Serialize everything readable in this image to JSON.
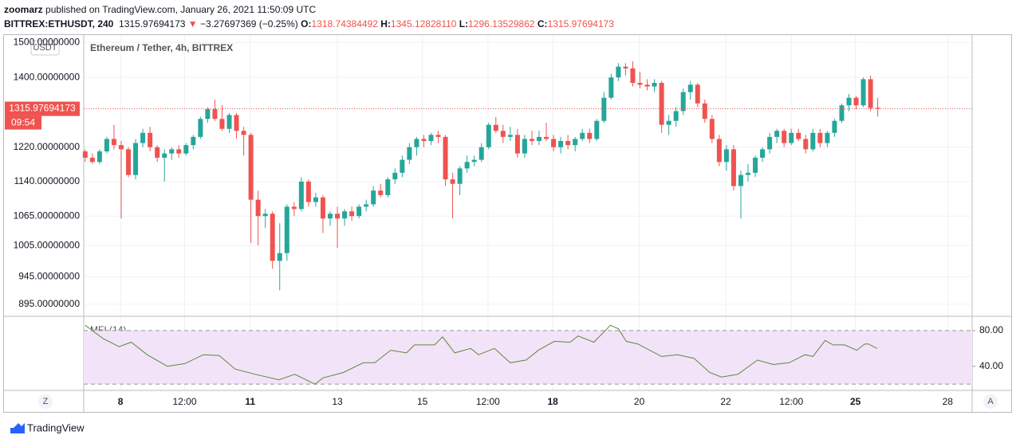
{
  "header": {
    "publisher": "zoomarz",
    "published": "published on TradingView.com, January 26, 2021 11:50:09 UTC",
    "symbol": "BITTREX:ETHUSDT, 240",
    "last": "1315.97694173",
    "direction": "▼",
    "change": "−3.27697369 (−0.25%)",
    "ohlc": [
      {
        "label": "O:",
        "value": "1318.74384492"
      },
      {
        "label": "H:",
        "value": "1345.12828110"
      },
      {
        "label": "L:",
        "value": "1296.13529862"
      },
      {
        "label": "C:",
        "value": "1315.97694173"
      }
    ]
  },
  "footer": {
    "logo": "TradingView",
    "left_button": "Z",
    "right_button": "A"
  },
  "chart_data": [
    {
      "type": "candlestick",
      "title": "Ethereum / Tether, 4h, BITTREX",
      "currency": "USDT",
      "countdown": "09:54",
      "up_color": "#26a69a",
      "down_color": "#ef5350",
      "log_scale": true,
      "grid": true,
      "ylim": [
        874,
        1522
      ],
      "yticks": [
        {
          "value": 1500,
          "label": "1500.00000000"
        },
        {
          "value": 1400,
          "label": "1400.00000000"
        },
        {
          "value": 1220,
          "label": "1220.00000000"
        },
        {
          "value": 1140,
          "label": "1140.00000000"
        },
        {
          "value": 1065,
          "label": "1065.00000000"
        },
        {
          "value": 1005,
          "label": "1005.00000000"
        },
        {
          "value": 945,
          "label": "945.00000000"
        },
        {
          "value": 895,
          "label": "895.00000000"
        }
      ],
      "xlim": [
        -0.2,
        123.1
      ],
      "xticks": [
        {
          "value": 4.9,
          "label": "8"
        },
        {
          "value": 13.8,
          "label": "12:00"
        },
        {
          "value": 22.9,
          "label": "11"
        },
        {
          "value": 35,
          "label": "13"
        },
        {
          "value": 46.8,
          "label": "15"
        },
        {
          "value": 55.9,
          "label": "12:00"
        },
        {
          "value": 64.9,
          "label": "18"
        },
        {
          "value": 76.9,
          "label": "20"
        },
        {
          "value": 88.9,
          "label": "22"
        },
        {
          "value": 98,
          "label": "12:00"
        },
        {
          "value": 106.9,
          "label": "25"
        },
        {
          "value": 119.7,
          "label": "28"
        }
      ],
      "candles": [
        [
          1210,
          1215,
          1185,
          1195
        ],
        [
          1195,
          1205,
          1180,
          1185
        ],
        [
          1185,
          1215,
          1180,
          1210
        ],
        [
          1210,
          1245,
          1205,
          1240
        ],
        [
          1240,
          1275,
          1215,
          1225
        ],
        [
          1225,
          1235,
          1060,
          1215
        ],
        [
          1215,
          1220,
          1150,
          1155
        ],
        [
          1155,
          1240,
          1145,
          1230
        ],
        [
          1230,
          1265,
          1220,
          1255
        ],
        [
          1255,
          1270,
          1210,
          1220
        ],
        [
          1220,
          1225,
          1185,
          1195
        ],
        [
          1195,
          1215,
          1140,
          1205
        ],
        [
          1205,
          1220,
          1190,
          1215
        ],
        [
          1215,
          1225,
          1195,
          1205
        ],
        [
          1205,
          1230,
          1200,
          1225
        ],
        [
          1225,
          1250,
          1215,
          1245
        ],
        [
          1245,
          1295,
          1240,
          1290
        ],
        [
          1290,
          1320,
          1280,
          1315
        ],
        [
          1315,
          1340,
          1285,
          1290
        ],
        [
          1290,
          1325,
          1260,
          1265
        ],
        [
          1265,
          1305,
          1255,
          1300
        ],
        [
          1300,
          1305,
          1240,
          1260
        ],
        [
          1260,
          1270,
          1200,
          1250
        ],
        [
          1250,
          1255,
          1010,
          1100
        ],
        [
          1100,
          1120,
          1005,
          1065
        ],
        [
          1065,
          1080,
          1040,
          1070
        ],
        [
          1070,
          1075,
          960,
          975
        ],
        [
          975,
          1050,
          920,
          990
        ],
        [
          990,
          1090,
          975,
          1085
        ],
        [
          1085,
          1095,
          1065,
          1080
        ],
        [
          1080,
          1150,
          1075,
          1140
        ],
        [
          1140,
          1145,
          1085,
          1095
        ],
        [
          1095,
          1115,
          1085,
          1105
        ],
        [
          1105,
          1110,
          1030,
          1060
        ],
        [
          1060,
          1075,
          1045,
          1070
        ],
        [
          1070,
          1085,
          1000,
          1060
        ],
        [
          1060,
          1080,
          1045,
          1075
        ],
        [
          1075,
          1085,
          1055,
          1065
        ],
        [
          1065,
          1090,
          1060,
          1085
        ],
        [
          1085,
          1100,
          1075,
          1090
        ],
        [
          1090,
          1130,
          1085,
          1120
        ],
        [
          1120,
          1135,
          1105,
          1110
        ],
        [
          1110,
          1150,
          1105,
          1145
        ],
        [
          1145,
          1170,
          1135,
          1160
        ],
        [
          1160,
          1200,
          1150,
          1190
        ],
        [
          1190,
          1230,
          1180,
          1220
        ],
        [
          1220,
          1245,
          1200,
          1240
        ],
        [
          1240,
          1250,
          1220,
          1235
        ],
        [
          1235,
          1255,
          1225,
          1250
        ],
        [
          1250,
          1260,
          1230,
          1245
        ],
        [
          1245,
          1250,
          1130,
          1145
        ],
        [
          1145,
          1160,
          1060,
          1135
        ],
        [
          1135,
          1175,
          1110,
          1170
        ],
        [
          1170,
          1200,
          1160,
          1185
        ],
        [
          1185,
          1200,
          1175,
          1190
        ],
        [
          1190,
          1230,
          1185,
          1220
        ],
        [
          1220,
          1280,
          1215,
          1275
        ],
        [
          1275,
          1295,
          1255,
          1260
        ],
        [
          1260,
          1275,
          1230,
          1245
        ],
        [
          1245,
          1270,
          1235,
          1250
        ],
        [
          1250,
          1265,
          1195,
          1205
        ],
        [
          1205,
          1250,
          1195,
          1240
        ],
        [
          1240,
          1260,
          1225,
          1235
        ],
        [
          1235,
          1260,
          1225,
          1245
        ],
        [
          1245,
          1280,
          1235,
          1240
        ],
        [
          1240,
          1250,
          1210,
          1220
        ],
        [
          1220,
          1245,
          1205,
          1235
        ],
        [
          1235,
          1250,
          1215,
          1225
        ],
        [
          1225,
          1245,
          1210,
          1240
        ],
        [
          1240,
          1265,
          1235,
          1255
        ],
        [
          1255,
          1265,
          1230,
          1240
        ],
        [
          1240,
          1290,
          1235,
          1285
        ],
        [
          1285,
          1360,
          1280,
          1345
        ],
        [
          1345,
          1410,
          1340,
          1400
        ],
        [
          1400,
          1440,
          1390,
          1430
        ],
        [
          1430,
          1440,
          1405,
          1425
        ],
        [
          1425,
          1445,
          1375,
          1385
        ],
        [
          1385,
          1415,
          1370,
          1380
        ],
        [
          1380,
          1395,
          1365,
          1375
        ],
        [
          1375,
          1395,
          1360,
          1385
        ],
        [
          1385,
          1390,
          1255,
          1275
        ],
        [
          1275,
          1300,
          1250,
          1285
        ],
        [
          1285,
          1320,
          1270,
          1310
        ],
        [
          1310,
          1370,
          1300,
          1360
        ],
        [
          1360,
          1390,
          1340,
          1380
        ],
        [
          1380,
          1385,
          1320,
          1330
        ],
        [
          1330,
          1340,
          1280,
          1290
        ],
        [
          1290,
          1300,
          1230,
          1240
        ],
        [
          1240,
          1250,
          1175,
          1185
        ],
        [
          1185,
          1225,
          1165,
          1215
        ],
        [
          1215,
          1225,
          1120,
          1130
        ],
        [
          1130,
          1165,
          1060,
          1155
        ],
        [
          1155,
          1180,
          1140,
          1160
        ],
        [
          1160,
          1200,
          1150,
          1195
        ],
        [
          1195,
          1220,
          1185,
          1215
        ],
        [
          1215,
          1255,
          1205,
          1245
        ],
        [
          1245,
          1265,
          1230,
          1260
        ],
        [
          1260,
          1265,
          1220,
          1230
        ],
        [
          1230,
          1265,
          1225,
          1255
        ],
        [
          1255,
          1265,
          1235,
          1240
        ],
        [
          1240,
          1250,
          1205,
          1215
        ],
        [
          1215,
          1265,
          1210,
          1255
        ],
        [
          1255,
          1265,
          1220,
          1230
        ],
        [
          1230,
          1260,
          1220,
          1255
        ],
        [
          1255,
          1290,
          1245,
          1285
        ],
        [
          1285,
          1330,
          1280,
          1325
        ],
        [
          1325,
          1355,
          1310,
          1345
        ],
        [
          1345,
          1350,
          1315,
          1325
        ],
        [
          1325,
          1400,
          1320,
          1395
        ],
        [
          1395,
          1405,
          1310,
          1318
        ],
        [
          1318.74384492,
          1345.1282811,
          1296.13529862,
          1315.97694173
        ]
      ]
    },
    {
      "type": "line",
      "title": "MFI (14)",
      "color": "#5b8a3a",
      "band_color": "#f3e3f8",
      "bands": [
        80,
        20
      ],
      "ylim": [
        13,
        96
      ],
      "yticks": [
        {
          "value": 80,
          "label": "80.00"
        },
        {
          "value": 40,
          "label": "40.00"
        }
      ],
      "xlim": [
        -0.2,
        123.1
      ],
      "x": [
        0,
        2.5,
        4.7,
        6.4,
        8.6,
        11.4,
        13.8,
        16.4,
        18.6,
        20.8,
        23.6,
        26.9,
        29.1,
        31.9,
        33,
        35.8,
        38.6,
        40.2,
        42.4,
        44.6,
        45.7,
        48.5,
        49.6,
        51.3,
        53.5,
        54.6,
        56.8,
        59,
        61.2,
        62.9,
        65.1,
        67.3,
        68.4,
        70.6,
        72.9,
        74,
        75.1,
        76.7,
        80,
        82.2,
        84.5,
        86.7,
        88.3,
        90.6,
        93.3,
        95.5,
        97.7,
        99.9,
        101,
        102.7,
        103.8,
        105.4,
        107.1,
        108.2,
        108.7,
        109.9
      ],
      "values": [
        86,
        71,
        62,
        67,
        53,
        40,
        43,
        53,
        52,
        37,
        31,
        25,
        31,
        20,
        27,
        33,
        44,
        44,
        58,
        55,
        64,
        64,
        73,
        55,
        60,
        53,
        60,
        44,
        47,
        58,
        68,
        67,
        74,
        67,
        86,
        82,
        68,
        65,
        51,
        53,
        49,
        33,
        28,
        31,
        47,
        42,
        44,
        53,
        51,
        69,
        64,
        64,
        58,
        65,
        65,
        60
      ]
    }
  ]
}
